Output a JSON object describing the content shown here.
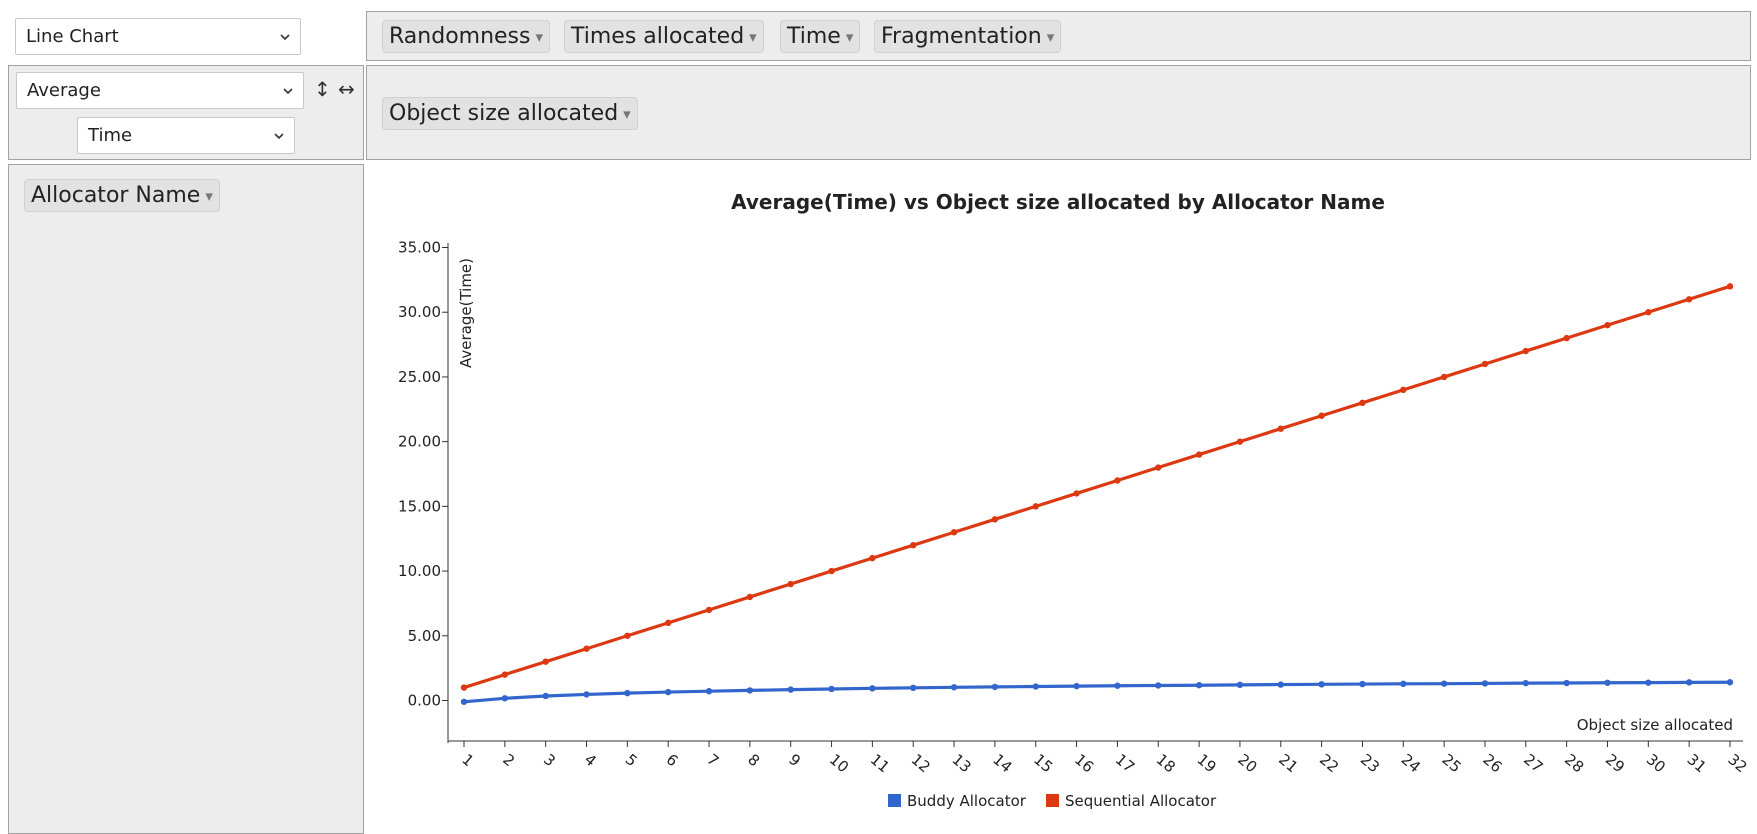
{
  "controls": {
    "renderer": "Line Chart",
    "aggregator": "Average",
    "aggregator_attr": "Time",
    "sort_rows_icon": "↕",
    "sort_cols_icon": "↔"
  },
  "filters": {
    "unused": [
      "Randomness",
      "Times allocated",
      "Time",
      "Fragmentation"
    ],
    "cols": [
      "Object size allocated"
    ],
    "rows": [
      "Allocator Name"
    ],
    "arrow": "▾"
  },
  "colors": {
    "buddy": "#3366cc",
    "sequential": "#dc3912",
    "panel": "#ededed"
  },
  "chart_data": {
    "type": "line",
    "title": "Average(Time) vs Object size allocated by Allocator Name",
    "xlabel": "Object size allocated",
    "ylabel": "Average(Time)",
    "x": [
      1,
      2,
      3,
      4,
      5,
      6,
      7,
      8,
      9,
      10,
      11,
      12,
      13,
      14,
      15,
      16,
      17,
      18,
      19,
      20,
      21,
      22,
      23,
      24,
      25,
      26,
      27,
      28,
      29,
      30,
      31,
      32
    ],
    "ylim": [
      -3.3,
      35
    ],
    "yticks": [
      "35.00",
      "30.00",
      "25.00",
      "20.00",
      "15.00",
      "10.00",
      "5.00",
      "0.00"
    ],
    "legend_position": "bottom",
    "series": [
      {
        "name": "Buddy Allocator",
        "color": "#3366cc",
        "values": [
          -0.1,
          0.17,
          0.35,
          0.47,
          0.57,
          0.65,
          0.72,
          0.78,
          0.84,
          0.89,
          0.94,
          0.98,
          1.02,
          1.05,
          1.08,
          1.11,
          1.14,
          1.16,
          1.18,
          1.21,
          1.23,
          1.25,
          1.27,
          1.29,
          1.3,
          1.32,
          1.34,
          1.35,
          1.37,
          1.38,
          1.4,
          1.41
        ]
      },
      {
        "name": "Sequential Allocator",
        "color": "#dc3912",
        "values": [
          1,
          2,
          3,
          4,
          5,
          6,
          7,
          8,
          9,
          10,
          11,
          12,
          13,
          14,
          15,
          16,
          17,
          18,
          19,
          20,
          21,
          22,
          23,
          24,
          25,
          26,
          27,
          28,
          29,
          30,
          31,
          32
        ]
      }
    ]
  }
}
